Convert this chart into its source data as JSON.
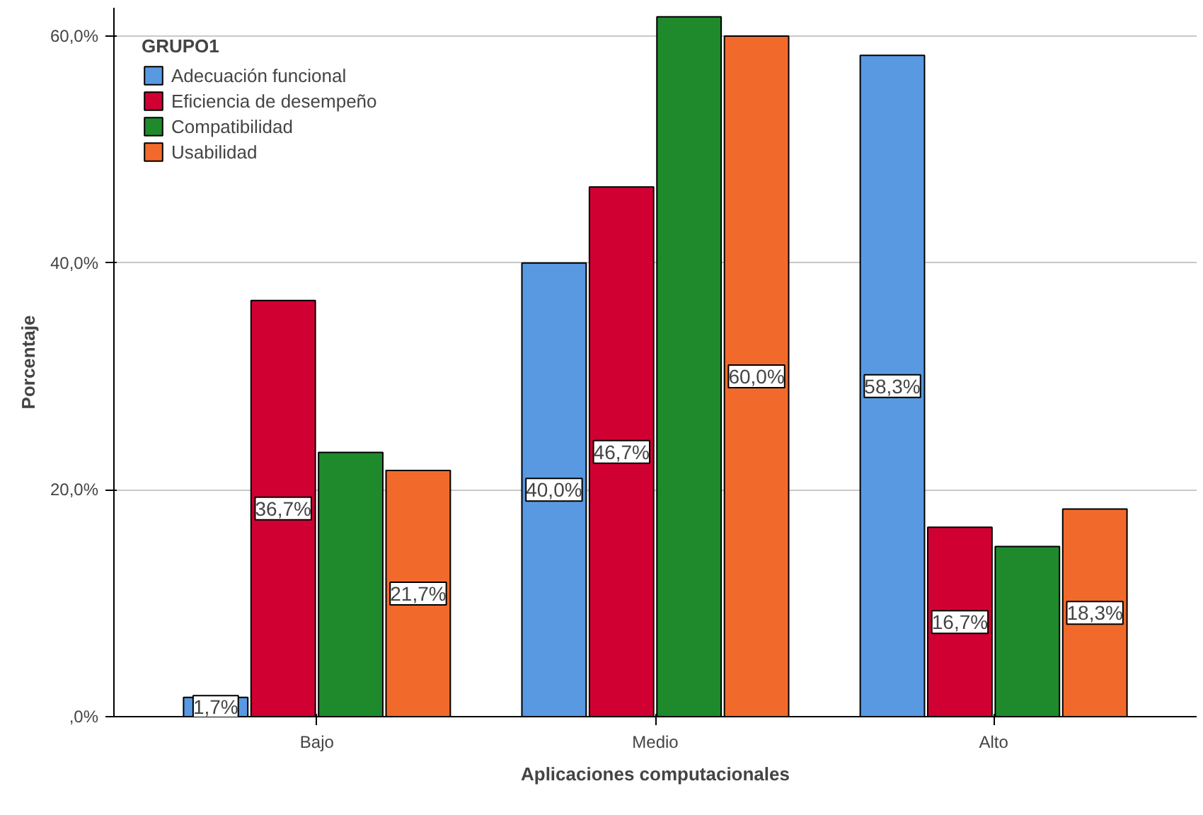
{
  "chart_data": {
    "type": "bar",
    "xlabel": "Aplicaciones computacionales",
    "ylabel": "Porcentaje",
    "legend_title": "GRUPO1",
    "categories": [
      "Bajo",
      "Medio",
      "Alto"
    ],
    "series": [
      {
        "name": "Adecuación funcional",
        "color": "#5899e2",
        "values": [
          1.7,
          40.0,
          58.3
        ],
        "value_labels": [
          "1,7%",
          "40,0%",
          "58,3%"
        ]
      },
      {
        "name": "Eficiencia de desempeño",
        "color": "#d10032",
        "values": [
          36.7,
          46.7,
          16.7
        ],
        "value_labels": [
          "36,7%",
          "46,7%",
          "16,7%"
        ]
      },
      {
        "name": "Compatibilidad",
        "color": "#1e8a2c",
        "values": [
          23.3,
          61.7,
          15.0
        ],
        "value_labels": [
          null,
          null,
          null
        ]
      },
      {
        "name": "Usabilidad",
        "color": "#f26a2b",
        "values": [
          21.7,
          60.0,
          18.3
        ],
        "value_labels": [
          "21,7%",
          "60,0%",
          "18,3%"
        ]
      }
    ],
    "ylim": [
      0,
      62.5
    ],
    "yticks": [
      {
        "value": 0,
        "label": ",0%"
      },
      {
        "value": 20,
        "label": "20,0%"
      },
      {
        "value": 40,
        "label": "40,0%"
      },
      {
        "value": 60,
        "label": "60,0%"
      }
    ],
    "grid": "y",
    "legend": "top left"
  }
}
